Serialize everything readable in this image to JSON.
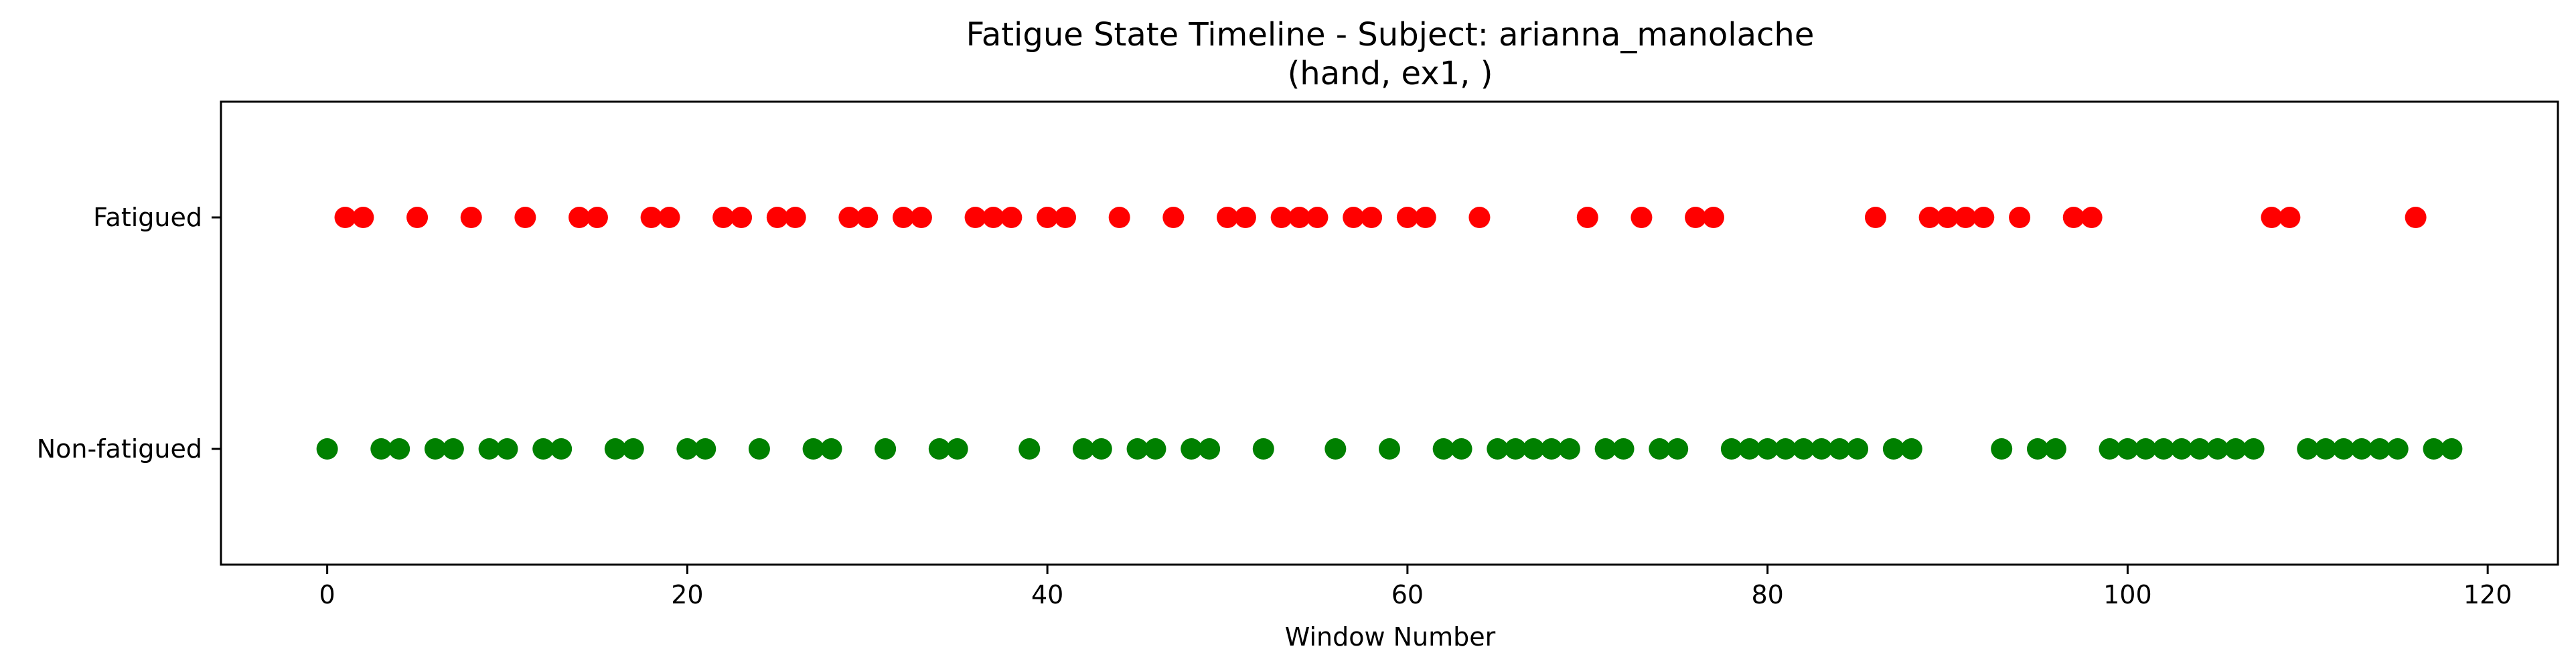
{
  "chart_data": {
    "type": "scatter",
    "title": "Fatigue State Timeline - Subject: arianna_manolache",
    "subtitle": "(hand, ex1, )",
    "xlabel": "Window Number",
    "ylabel": "",
    "xlim": [
      -5.9,
      123.9
    ],
    "ylim": [
      -0.5,
      1.5
    ],
    "xticks": [
      0,
      20,
      40,
      60,
      80,
      100,
      120
    ],
    "yticks": [
      {
        "value": 0,
        "label": "Non-fatigued"
      },
      {
        "value": 1,
        "label": "Fatigued"
      }
    ],
    "grid": false,
    "series": [
      {
        "label_value": 1,
        "color": "#ff0000",
        "x": [
          1,
          2,
          5,
          8,
          11,
          14,
          15,
          18,
          19,
          22,
          23,
          25,
          26,
          29,
          30,
          32,
          33,
          36,
          37,
          38,
          40,
          41,
          44,
          47,
          50,
          51,
          53,
          54,
          55,
          57,
          58,
          60,
          61,
          64,
          70,
          73,
          76,
          77,
          86,
          89,
          90,
          91,
          92,
          94,
          97,
          98,
          108,
          109,
          116
        ]
      },
      {
        "label_value": 0,
        "color": "#008000",
        "x": [
          0,
          3,
          4,
          6,
          7,
          9,
          10,
          12,
          13,
          16,
          17,
          20,
          21,
          24,
          27,
          28,
          31,
          34,
          35,
          39,
          42,
          43,
          45,
          46,
          48,
          49,
          52,
          56,
          59,
          62,
          63,
          65,
          66,
          67,
          68,
          69,
          71,
          72,
          74,
          75,
          78,
          79,
          80,
          81,
          82,
          83,
          84,
          85,
          87,
          88,
          93,
          95,
          96,
          99,
          100,
          101,
          102,
          103,
          104,
          105,
          106,
          107,
          110,
          111,
          112,
          113,
          114,
          115,
          117,
          118
        ]
      }
    ]
  }
}
